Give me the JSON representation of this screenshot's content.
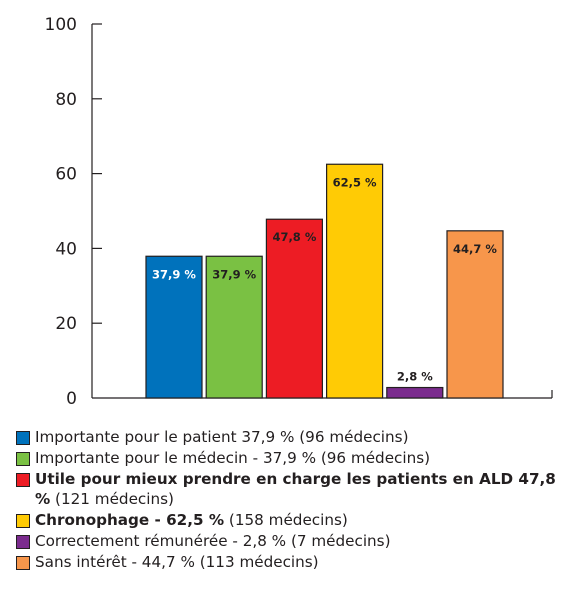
{
  "chart_data": {
    "type": "bar",
    "ylim": [
      0,
      100
    ],
    "yticks": [
      "0",
      "20",
      "40",
      "60",
      "80",
      "100"
    ],
    "grid": false,
    "legend_position": "bottom",
    "bars": [
      {
        "value": 37.9,
        "label": "37,9 %",
        "color": "#0072bc",
        "label_color": "#ffffff",
        "label_position": "inside"
      },
      {
        "value": 37.9,
        "label": "37,9 %",
        "color": "#7ac143",
        "label_color": "#231f20",
        "label_position": "inside"
      },
      {
        "value": 47.8,
        "label": "47,8 %",
        "color": "#ed1c24",
        "label_color": "#231f20",
        "label_position": "inside"
      },
      {
        "value": 62.5,
        "label": "62,5 %",
        "color": "#ffcb05",
        "label_color": "#231f20",
        "label_position": "inside"
      },
      {
        "value": 2.8,
        "label": "2,8 %",
        "color": "#7b2b8e",
        "label_color": "#231f20",
        "label_position": "above"
      },
      {
        "value": 44.7,
        "label": "44,7 %",
        "color": "#f7964b",
        "label_color": "#231f20",
        "label_position": "inside"
      }
    ],
    "legend": [
      {
        "color": "#0072bc",
        "bold": "",
        "text": "Importante pour le patient 37,9 % (96 médecins)"
      },
      {
        "color": "#7ac143",
        "bold": "",
        "text": "Importante pour le médecin - 37,9 % (96 médecins)"
      },
      {
        "color": "#ed1c24",
        "bold": "Utile pour mieux prendre en charge les patients en ALD 47,8 %",
        "text": " (121 médecins)"
      },
      {
        "color": "#ffcb05",
        "bold": "Chronophage - 62,5 %",
        "text": " (158 médecins)"
      },
      {
        "color": "#7b2b8e",
        "bold": "",
        "text": "Correctement rémunérée - 2,8 % (7 médecins)"
      },
      {
        "color": "#f7964b",
        "bold": "",
        "text": "Sans intérêt - 44,7 % (113 médecins)"
      }
    ]
  }
}
